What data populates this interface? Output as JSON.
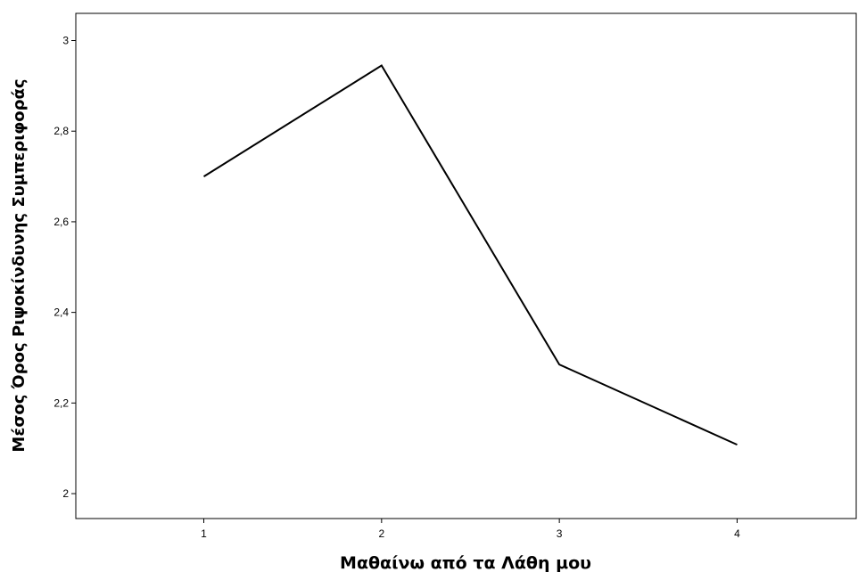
{
  "chart_data": {
    "type": "line",
    "title": "",
    "xlabel": "Μαθαίνω από τα Λάθη  μου",
    "ylabel": "Μέσος Όρος Ριψοκίνδυνης Συμπεριφοράς",
    "categories": [
      "1",
      "2",
      "3",
      "4"
    ],
    "x": [
      1,
      2,
      3,
      4
    ],
    "series": [
      {
        "values": [
          2.7,
          2.945,
          2.285,
          2.108
        ]
      }
    ],
    "xlim": [
      0.28,
      4.67
    ],
    "ylim": [
      1.945,
      3.06
    ],
    "yticks": [
      2,
      2.2,
      2.4,
      2.6,
      2.8,
      3
    ],
    "ytick_labels": [
      "2",
      "2,2",
      "2,4",
      "2,6",
      "2,8",
      "3"
    ],
    "grid": false,
    "legend": "none",
    "line_color": "#000000"
  }
}
